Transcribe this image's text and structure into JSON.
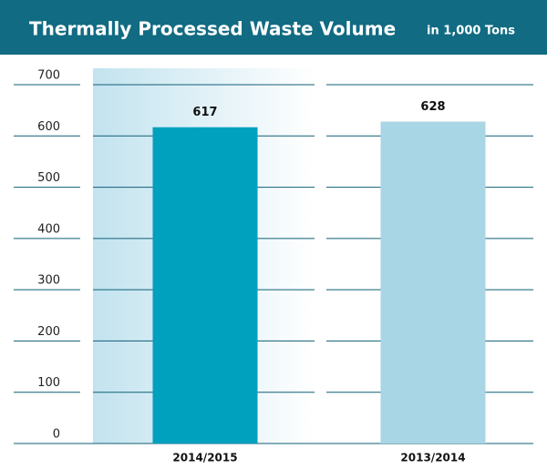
{
  "chart_data": {
    "type": "bar",
    "title": "Thermally Processed Waste Volume",
    "subtitle": "in 1,000 Tons",
    "categories": [
      "2014/2015",
      "2013/2014"
    ],
    "values": [
      617,
      628
    ],
    "colors": [
      "#00a0bf",
      "#a8d6e4"
    ],
    "ylim": [
      0,
      700
    ],
    "yticks": [
      0,
      100,
      200,
      300,
      400,
      500,
      600,
      700
    ],
    "grid": true
  }
}
